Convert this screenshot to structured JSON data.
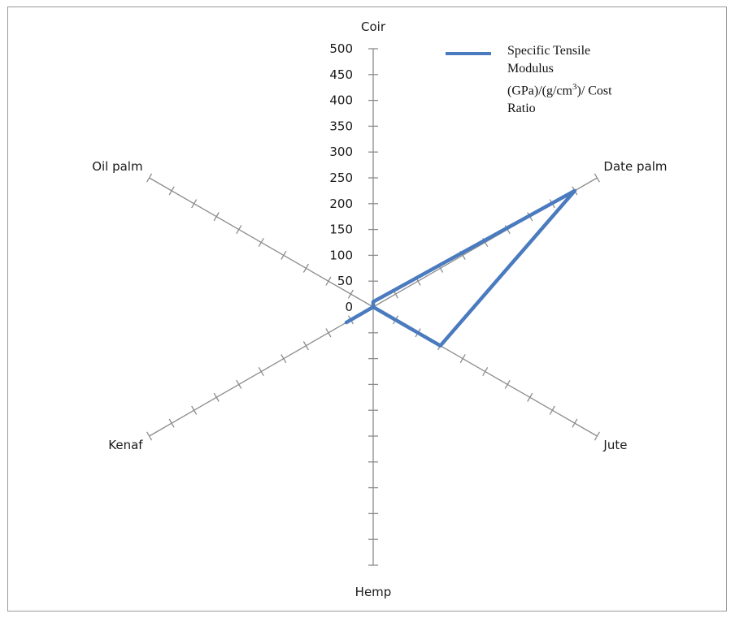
{
  "chart_data": {
    "type": "radar",
    "categories": [
      "Coir",
      "Date palm",
      "Jute",
      "Hemp",
      "Kenaf",
      "Oil palm"
    ],
    "series": [
      {
        "name": "Specific Tensile Modulus (GPa)/(g/cm3)/ Cost Ratio",
        "values": [
          10,
          450,
          150,
          0,
          60,
          0
        ],
        "color": "#4a7bbf"
      }
    ],
    "rmax": 500,
    "ticks": [
      "0",
      "50",
      "100",
      "150",
      "200",
      "250",
      "300",
      "350",
      "400",
      "450",
      "500"
    ],
    "grid": false,
    "legend": "top-right"
  },
  "legend": {
    "line1": "Specific Tensile",
    "line2": "Modulus",
    "line3_a": "(GPa)/(g/cm",
    "line3_sup": "3",
    "line3_b": ")/ Cost",
    "line4": "Ratio"
  }
}
